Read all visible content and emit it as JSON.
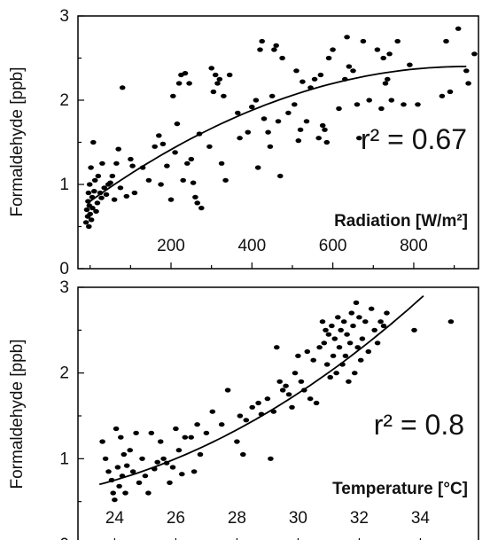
{
  "chart_data": [
    {
      "type": "scatter",
      "title": "",
      "ylabel": "Formaldehyde [ppb]",
      "xlabel": "Radiation [W/m²]",
      "annotation": "r² = 0.67",
      "xlim": [
        -30,
        960
      ],
      "ylim": [
        0,
        3
      ],
      "xticks": [
        200,
        400,
        600,
        800
      ],
      "yticks": [
        0,
        1,
        2,
        3
      ],
      "grid": false,
      "fit_curve": {
        "type": "quadratic",
        "points": [
          [
            0,
            0.8
          ],
          [
            930,
            2.4
          ]
        ]
      },
      "points": [
        [
          -10,
          0.55
        ],
        [
          -8,
          0.7
        ],
        [
          -6,
          0.62
        ],
        [
          -5,
          0.8
        ],
        [
          -4,
          0.9
        ],
        [
          -3,
          0.5
        ],
        [
          -2,
          0.75
        ],
        [
          -1,
          1.0
        ],
        [
          0,
          0.65
        ],
        [
          2,
          1.2
        ],
        [
          3,
          0.58
        ],
        [
          5,
          0.85
        ],
        [
          6,
          0.72
        ],
        [
          8,
          1.5
        ],
        [
          10,
          0.92
        ],
        [
          12,
          1.05
        ],
        [
          15,
          0.68
        ],
        [
          18,
          0.78
        ],
        [
          20,
          1.1
        ],
        [
          25,
          0.9
        ],
        [
          28,
          0.84
        ],
        [
          30,
          1.25
        ],
        [
          35,
          0.96
        ],
        [
          40,
          0.88
        ],
        [
          45,
          1.0
        ],
        [
          50,
          1.02
        ],
        [
          55,
          1.1
        ],
        [
          60,
          0.82
        ],
        [
          65,
          1.25
        ],
        [
          70,
          1.42
        ],
        [
          75,
          0.96
        ],
        [
          80,
          2.15
        ],
        [
          90,
          0.86
        ],
        [
          100,
          1.3
        ],
        [
          105,
          1.22
        ],
        [
          110,
          0.9
        ],
        [
          130,
          1.2
        ],
        [
          145,
          1.05
        ],
        [
          160,
          1.45
        ],
        [
          170,
          1.58
        ],
        [
          175,
          1.0
        ],
        [
          180,
          1.48
        ],
        [
          190,
          1.22
        ],
        [
          200,
          0.82
        ],
        [
          205,
          2.05
        ],
        [
          210,
          1.38
        ],
        [
          215,
          1.72
        ],
        [
          220,
          2.2
        ],
        [
          225,
          2.3
        ],
        [
          230,
          1.05
        ],
        [
          235,
          2.32
        ],
        [
          240,
          1.25
        ],
        [
          245,
          2.2
        ],
        [
          250,
          1.3
        ],
        [
          255,
          1.02
        ],
        [
          260,
          0.85
        ],
        [
          265,
          0.78
        ],
        [
          270,
          1.6
        ],
        [
          275,
          0.72
        ],
        [
          295,
          1.45
        ],
        [
          300,
          2.38
        ],
        [
          305,
          2.1
        ],
        [
          310,
          2.3
        ],
        [
          315,
          2.2
        ],
        [
          320,
          2.25
        ],
        [
          325,
          1.25
        ],
        [
          330,
          2.05
        ],
        [
          335,
          1.05
        ],
        [
          345,
          2.3
        ],
        [
          365,
          1.85
        ],
        [
          370,
          1.55
        ],
        [
          390,
          1.62
        ],
        [
          400,
          1.92
        ],
        [
          410,
          2.0
        ],
        [
          415,
          1.2
        ],
        [
          420,
          2.6
        ],
        [
          425,
          2.7
        ],
        [
          430,
          1.78
        ],
        [
          440,
          1.62
        ],
        [
          445,
          1.45
        ],
        [
          450,
          2.05
        ],
        [
          455,
          2.6
        ],
        [
          460,
          2.65
        ],
        [
          465,
          1.75
        ],
        [
          470,
          1.1
        ],
        [
          475,
          2.5
        ],
        [
          490,
          1.85
        ],
        [
          505,
          1.95
        ],
        [
          510,
          2.35
        ],
        [
          515,
          1.52
        ],
        [
          520,
          1.65
        ],
        [
          525,
          2.22
        ],
        [
          535,
          1.75
        ],
        [
          545,
          2.15
        ],
        [
          555,
          2.25
        ],
        [
          565,
          1.55
        ],
        [
          570,
          2.3
        ],
        [
          575,
          1.7
        ],
        [
          580,
          1.65
        ],
        [
          585,
          1.5
        ],
        [
          590,
          2.5
        ],
        [
          600,
          2.6
        ],
        [
          615,
          1.9
        ],
        [
          630,
          2.25
        ],
        [
          635,
          2.75
        ],
        [
          640,
          2.4
        ],
        [
          650,
          2.35
        ],
        [
          660,
          1.95
        ],
        [
          665,
          1.55
        ],
        [
          675,
          2.7
        ],
        [
          690,
          2.0
        ],
        [
          710,
          2.6
        ],
        [
          720,
          1.9
        ],
        [
          725,
          2.5
        ],
        [
          730,
          2.2
        ],
        [
          735,
          2.25
        ],
        [
          740,
          2.55
        ],
        [
          745,
          2.0
        ],
        [
          760,
          2.7
        ],
        [
          775,
          1.95
        ],
        [
          790,
          2.42
        ],
        [
          810,
          1.95
        ],
        [
          870,
          2.05
        ],
        [
          880,
          2.7
        ],
        [
          890,
          2.1
        ],
        [
          910,
          2.85
        ],
        [
          930,
          2.35
        ],
        [
          935,
          2.2
        ],
        [
          950,
          2.55
        ]
      ]
    },
    {
      "type": "scatter",
      "title": "",
      "ylabel": "Formaldehyde [ppb]",
      "xlabel": "Temperature [°C]",
      "annotation": "r² = 0.8",
      "xlim": [
        22.8,
        35.9
      ],
      "ylim": [
        0,
        3
      ],
      "xticks": [
        24,
        26,
        28,
        30,
        32,
        34
      ],
      "yticks": [
        0,
        1,
        2,
        3
      ],
      "grid": false,
      "fit_curve": {
        "type": "quadratic",
        "points": [
          [
            23.5,
            0.7
          ],
          [
            34.1,
            2.9
          ]
        ]
      },
      "points": [
        [
          23.6,
          1.2
        ],
        [
          23.7,
          1.0
        ],
        [
          23.8,
          0.85
        ],
        [
          23.9,
          0.75
        ],
        [
          23.95,
          0.6
        ],
        [
          24.0,
          0.52
        ],
        [
          24.05,
          1.35
        ],
        [
          24.1,
          0.9
        ],
        [
          24.15,
          0.68
        ],
        [
          24.2,
          1.25
        ],
        [
          24.25,
          0.8
        ],
        [
          24.3,
          1.05
        ],
        [
          24.35,
          0.6
        ],
        [
          24.4,
          0.92
        ],
        [
          24.5,
          1.1
        ],
        [
          24.6,
          0.85
        ],
        [
          24.7,
          1.3
        ],
        [
          24.8,
          0.72
        ],
        [
          24.9,
          1.0
        ],
        [
          25.0,
          0.8
        ],
        [
          25.1,
          0.6
        ],
        [
          25.2,
          1.3
        ],
        [
          25.3,
          0.88
        ],
        [
          25.4,
          0.96
        ],
        [
          25.5,
          1.2
        ],
        [
          25.6,
          1.0
        ],
        [
          25.7,
          0.95
        ],
        [
          25.8,
          0.72
        ],
        [
          25.9,
          0.9
        ],
        [
          26.0,
          1.35
        ],
        [
          26.1,
          1.1
        ],
        [
          26.2,
          0.82
        ],
        [
          26.3,
          1.25
        ],
        [
          26.5,
          1.25
        ],
        [
          26.6,
          0.85
        ],
        [
          26.7,
          1.4
        ],
        [
          26.8,
          1.05
        ],
        [
          27.0,
          1.3
        ],
        [
          27.2,
          1.55
        ],
        [
          27.5,
          1.4
        ],
        [
          27.7,
          1.8
        ],
        [
          28.0,
          1.2
        ],
        [
          28.1,
          1.5
        ],
        [
          28.2,
          1.05
        ],
        [
          28.3,
          1.45
        ],
        [
          28.5,
          1.6
        ],
        [
          28.7,
          1.65
        ],
        [
          28.8,
          1.52
        ],
        [
          29.0,
          1.7
        ],
        [
          29.1,
          1.0
        ],
        [
          29.2,
          1.55
        ],
        [
          29.3,
          2.3
        ],
        [
          29.4,
          1.9
        ],
        [
          29.5,
          1.8
        ],
        [
          29.6,
          1.85
        ],
        [
          29.7,
          1.75
        ],
        [
          29.8,
          1.6
        ],
        [
          29.9,
          2.0
        ],
        [
          30.0,
          2.2
        ],
        [
          30.1,
          1.9
        ],
        [
          30.2,
          1.8
        ],
        [
          30.3,
          2.25
        ],
        [
          30.4,
          1.7
        ],
        [
          30.5,
          2.15
        ],
        [
          30.6,
          1.65
        ],
        [
          30.7,
          2.3
        ],
        [
          30.8,
          2.6
        ],
        [
          30.85,
          2.35
        ],
        [
          30.9,
          2.5
        ],
        [
          30.95,
          2.1
        ],
        [
          31.0,
          2.45
        ],
        [
          31.05,
          1.95
        ],
        [
          31.1,
          2.55
        ],
        [
          31.15,
          2.2
        ],
        [
          31.2,
          2.4
        ],
        [
          31.25,
          2.0
        ],
        [
          31.3,
          2.65
        ],
        [
          31.35,
          2.3
        ],
        [
          31.4,
          2.5
        ],
        [
          31.45,
          2.1
        ],
        [
          31.5,
          2.6
        ],
        [
          31.55,
          2.2
        ],
        [
          31.6,
          2.45
        ],
        [
          31.65,
          1.9
        ],
        [
          31.7,
          2.35
        ],
        [
          31.75,
          2.7
        ],
        [
          31.8,
          2.55
        ],
        [
          31.85,
          2.0
        ],
        [
          31.9,
          2.82
        ],
        [
          31.95,
          2.3
        ],
        [
          32.0,
          2.65
        ],
        [
          32.05,
          2.15
        ],
        [
          32.1,
          2.4
        ],
        [
          32.2,
          2.6
        ],
        [
          32.3,
          2.25
        ],
        [
          32.4,
          2.75
        ],
        [
          32.5,
          2.5
        ],
        [
          32.6,
          2.35
        ],
        [
          32.7,
          2.6
        ],
        [
          32.8,
          2.55
        ],
        [
          32.9,
          2.7
        ],
        [
          33.8,
          2.5
        ],
        [
          35.0,
          2.6
        ]
      ]
    }
  ]
}
